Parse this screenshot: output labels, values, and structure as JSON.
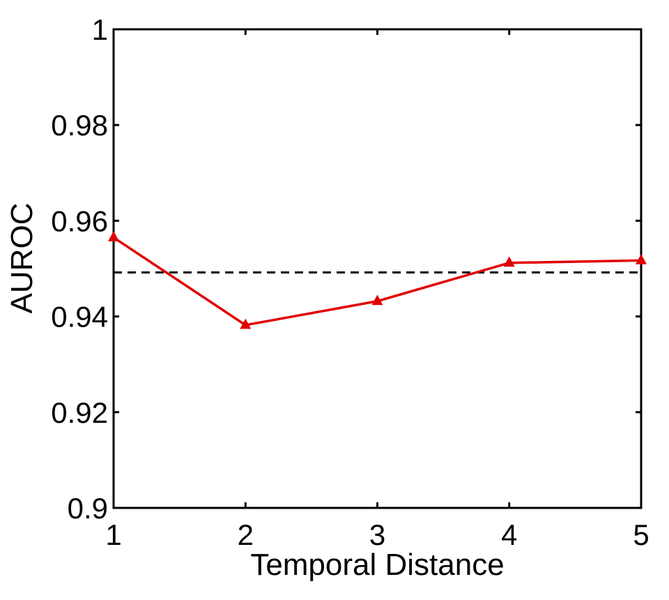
{
  "chart_data": {
    "type": "line",
    "title": "",
    "xlabel": "Temporal Distance",
    "ylabel": "AUROC",
    "xlim": [
      1,
      5
    ],
    "ylim": [
      0.9,
      1
    ],
    "x_ticks": [
      1,
      2,
      3,
      4,
      5
    ],
    "x_tick_labels": [
      "1",
      "2",
      "3",
      "4",
      "5"
    ],
    "y_ticks": [
      0.9,
      0.92,
      0.94,
      0.96,
      0.98,
      1
    ],
    "y_tick_labels": [
      "0.9",
      "0.92",
      "0.94",
      "0.96",
      "0.98",
      "1"
    ],
    "grid": false,
    "series": [
      {
        "x": [
          1,
          2,
          3,
          4,
          5
        ],
        "y": [
          0.9565,
          0.9382,
          0.9432,
          0.9512,
          0.9517
        ],
        "color": "#e00000",
        "marker": "triangle",
        "line_style": "solid"
      }
    ],
    "reference_lines": [
      {
        "orientation": "horizontal",
        "y": 0.9492,
        "color": "#000000",
        "line_style": "dashed"
      }
    ]
  }
}
